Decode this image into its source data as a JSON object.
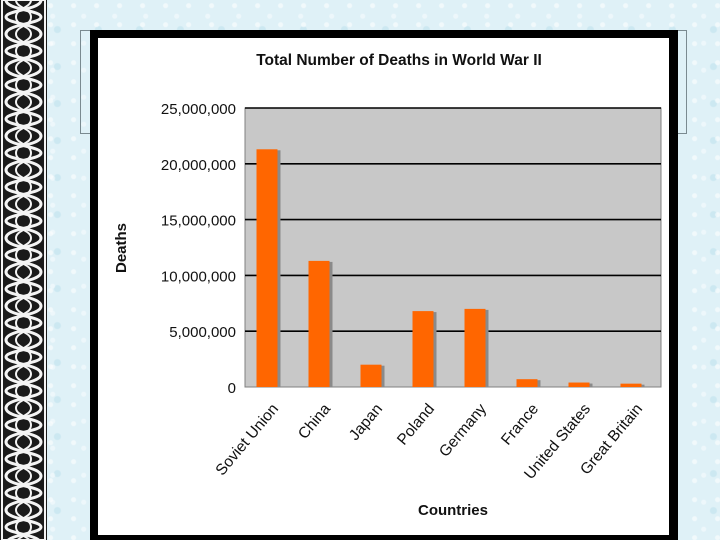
{
  "chart_data": {
    "type": "bar",
    "title": "Total Number of Deaths in World War II",
    "xlabel": "Countries",
    "ylabel": "Deaths",
    "categories": [
      "Soviet Union",
      "China",
      "Japan",
      "Poland",
      "Germany",
      "France",
      "United States",
      "Great Britain"
    ],
    "values": [
      21300000,
      11300000,
      2000000,
      6800000,
      7000000,
      700000,
      400000,
      300000
    ],
    "ylim": [
      0,
      25000000
    ],
    "yticks": [
      0,
      5000000,
      10000000,
      15000000,
      20000000,
      25000000
    ],
    "ytick_labels": [
      "0",
      "5,000,000",
      "10,000,000",
      "15,000,000",
      "20,000,000",
      "25,000,000"
    ],
    "grid": true,
    "bar_color": "#ff6600",
    "plot_background": "#c8c8c8"
  }
}
